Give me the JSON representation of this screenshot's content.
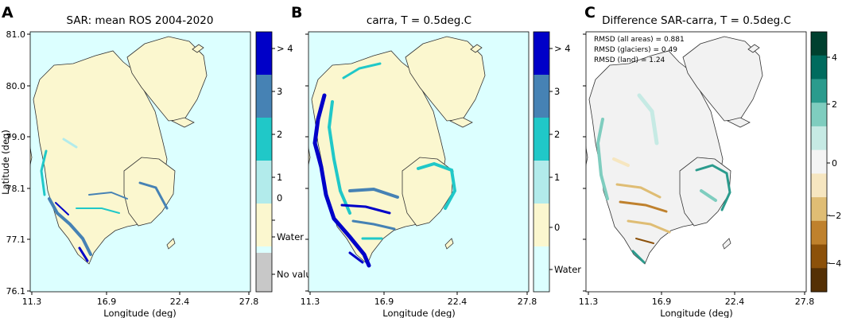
{
  "panels": [
    {
      "letter": "A",
      "title": "SAR: mean ROS 2004-2020",
      "colorbar_labels": [
        "> 4",
        "3",
        "2",
        "1",
        "0",
        "Water",
        "No value"
      ]
    },
    {
      "letter": "B",
      "title": "carra, T = 0.5deg.C",
      "colorbar_labels": [
        "> 4",
        "3",
        "2",
        "1",
        "0",
        "Water"
      ]
    },
    {
      "letter": "C",
      "title": "Difference SAR-carra, T = 0.5deg.C",
      "colorbar_labels": [
        "4",
        "2",
        "0",
        "−2",
        "−4"
      ],
      "stats": [
        "RMSD (all areas) = 0.881",
        "RMSD (glaciers) = 0.49",
        "RMSD (land) = 1.24"
      ]
    }
  ],
  "axes": {
    "xlabel": "Longitude (deg)",
    "ylabel": "Latitude (deg)",
    "xticks": [
      "11.3",
      "16.9",
      "22.4",
      "27.8"
    ],
    "yticks": [
      "81.0",
      "80.0",
      "79.0",
      "78.1",
      "77.1",
      "76.1"
    ]
  },
  "colors": {
    "water": "#dcffff",
    "no_value": "#c8c8c8",
    "class_0": "#fbf7cf",
    "class_1": "#b2ebeb",
    "class_2": "#20c8c8",
    "class_3": "#4682b4",
    "class_4plus": "#0000c8",
    "diff_land": "#f2f2f2",
    "coast": "#333333"
  },
  "diff_colorbar_colors": [
    "#00402f",
    "#006b5e",
    "#2b9b8d",
    "#7fcdbf",
    "#c6eae4",
    "#f4f4f4",
    "#f6e6c0",
    "#dfbd74",
    "#bf812d",
    "#8c510a",
    "#543005"
  ],
  "chart_data": [
    {
      "type": "heatmap",
      "title": "SAR: mean ROS 2004-2020",
      "xlabel": "Longitude (deg)",
      "ylabel": "Latitude (deg)",
      "xlim": [
        11.3,
        27.8
      ],
      "ylim": [
        76.1,
        81.0
      ],
      "categories": [
        "No value",
        "Water",
        "0",
        "1",
        "2",
        "3",
        "> 4"
      ]
    },
    {
      "type": "heatmap",
      "title": "carra, T = 0.5deg.C",
      "xlabel": "Longitude (deg)",
      "xlim": [
        11.3,
        27.8
      ],
      "ylim": [
        76.1,
        81.0
      ],
      "categories": [
        "Water",
        "0",
        "1",
        "2",
        "3",
        "> 4"
      ]
    },
    {
      "type": "heatmap",
      "title": "Difference SAR-carra, T = 0.5deg.C",
      "xlabel": "Longitude (deg)",
      "xlim": [
        11.3,
        27.8
      ],
      "ylim": [
        76.1,
        81.0
      ],
      "colorbar_ticks": [
        4,
        2,
        0,
        -2,
        -4
      ],
      "annotations": [
        "RMSD (all areas) = 0.881",
        "RMSD (glaciers) = 0.49",
        "RMSD (land) = 1.24"
      ]
    }
  ]
}
